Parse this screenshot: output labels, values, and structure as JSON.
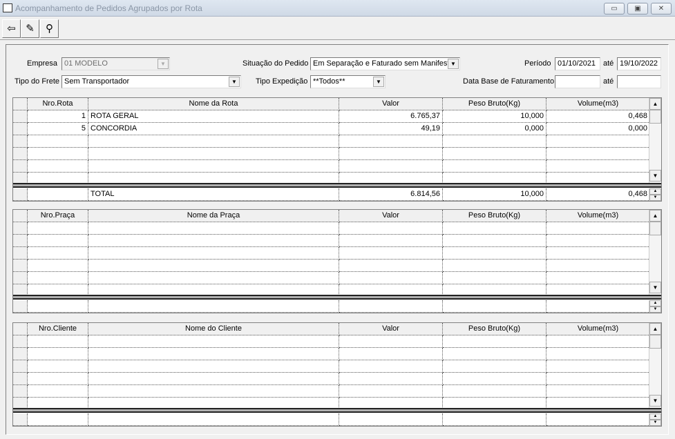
{
  "window": {
    "title": "Acompanhamento de Pedidos Agrupados por Rota",
    "minimize": "▭",
    "maximize": "▣",
    "close": "✕"
  },
  "toolbar": {
    "exit_icon": "door-exit-icon",
    "clear_icon": "eraser-icon",
    "search_icon": "binoculars-icon"
  },
  "filters": {
    "empresa_label": "Empresa",
    "empresa_value": "01 MODELO",
    "situacao_label": "Situação do Pedido",
    "situacao_value": "Em Separação e Faturado sem Manifesto",
    "periodo_label": "Período",
    "periodo_from": "01/10/2021",
    "ate1": "até",
    "periodo_to": "19/10/2022",
    "frete_label": "Tipo do Frete",
    "frete_value": "Sem Transportador",
    "expedicao_label": "Tipo Expedição",
    "expedicao_value": "**Todos**",
    "faturamento_label": "Data Base de Faturamento",
    "faturamento_from": "",
    "ate2": "até",
    "faturamento_to": ""
  },
  "grids": [
    {
      "columns": [
        "Nro.Rota",
        "Nome da Rota",
        "Valor",
        "Peso Bruto(Kg)",
        "Volume(m3)"
      ],
      "rows": [
        [
          "1",
          "ROTA GERAL",
          "6.765,37",
          "10,000",
          "0,468"
        ],
        [
          "5",
          "CONCORDIA",
          "49,19",
          "0,000",
          "0,000"
        ]
      ],
      "total": [
        "",
        "TOTAL",
        "6.814,56",
        "10,000",
        "0,468"
      ]
    },
    {
      "columns": [
        "Nro.Praça",
        "Nome da Praça",
        "Valor",
        "Peso Bruto(Kg)",
        "Volume(m3)"
      ],
      "rows": [],
      "total": [
        "",
        "",
        "",
        "",
        ""
      ]
    },
    {
      "columns": [
        "Nro.Cliente",
        "Nome do Cliente",
        "Valor",
        "Peso Bruto(Kg)",
        "Volume(m3)"
      ],
      "rows": [],
      "total": [
        "",
        "",
        "",
        "",
        ""
      ]
    }
  ]
}
